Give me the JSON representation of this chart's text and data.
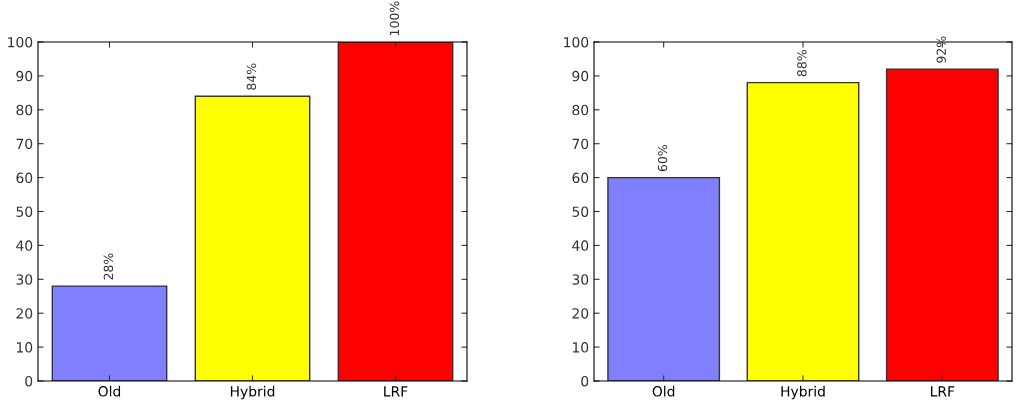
{
  "chart_data": [
    {
      "type": "bar",
      "categories": [
        "Old",
        "Hybrid",
        "LRF"
      ],
      "values": [
        28,
        84,
        100
      ],
      "colors": [
        "#8080ff",
        "#ffff00",
        "#ff0000"
      ],
      "value_labels": [
        "28%",
        "84%",
        "100%"
      ],
      "ylim": [
        0,
        100
      ],
      "yticks": [
        0,
        10,
        20,
        30,
        40,
        50,
        60,
        70,
        80,
        90,
        100
      ],
      "grid": false,
      "legend": false
    },
    {
      "type": "bar",
      "categories": [
        "Old",
        "Hybrid",
        "LRF"
      ],
      "values": [
        60,
        88,
        92
      ],
      "colors": [
        "#8080ff",
        "#ffff00",
        "#ff0000"
      ],
      "value_labels": [
        "60%",
        "88%",
        "92%"
      ],
      "ylim": [
        0,
        100
      ],
      "yticks": [
        0,
        10,
        20,
        30,
        40,
        50,
        60,
        70,
        80,
        90,
        100
      ],
      "grid": false,
      "legend": false
    }
  ]
}
